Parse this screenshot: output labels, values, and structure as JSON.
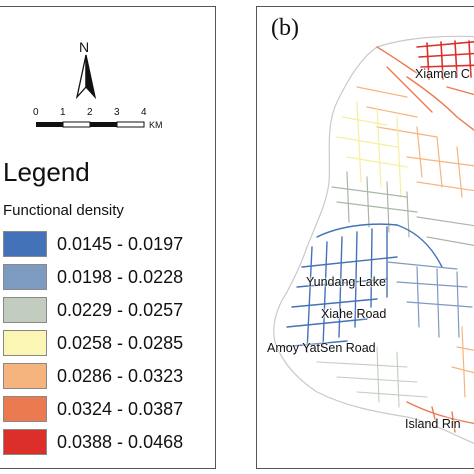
{
  "compass": {
    "label": "N"
  },
  "scale": {
    "ticks": [
      "0",
      "1",
      "2",
      "3",
      "4"
    ],
    "unit": "KM"
  },
  "legend": {
    "title": "Legend",
    "subtitle": "Functional density",
    "classes": [
      {
        "label": "0.0145 - 0.0197",
        "color": "#4472b8"
      },
      {
        "label": "0.0198 - 0.0228",
        "color": "#7d9bc0"
      },
      {
        "label": "0.0229 - 0.0257",
        "color": "#c2cdbf"
      },
      {
        "label": "0.0258 - 0.0285",
        "color": "#fbf6b4"
      },
      {
        "label": "0.0286 - 0.0323",
        "color": "#f5b47d"
      },
      {
        "label": "0.0324 - 0.0387",
        "color": "#ec7a50"
      },
      {
        "label": "0.0388 - 0.0468",
        "color": "#dc2f2a"
      }
    ]
  },
  "map": {
    "panel_label": "(b)",
    "places": [
      "Xiamen C",
      "Yundang Lake",
      "Xiahe Road",
      "Amoy YatSen Road",
      "Island Rin"
    ]
  }
}
